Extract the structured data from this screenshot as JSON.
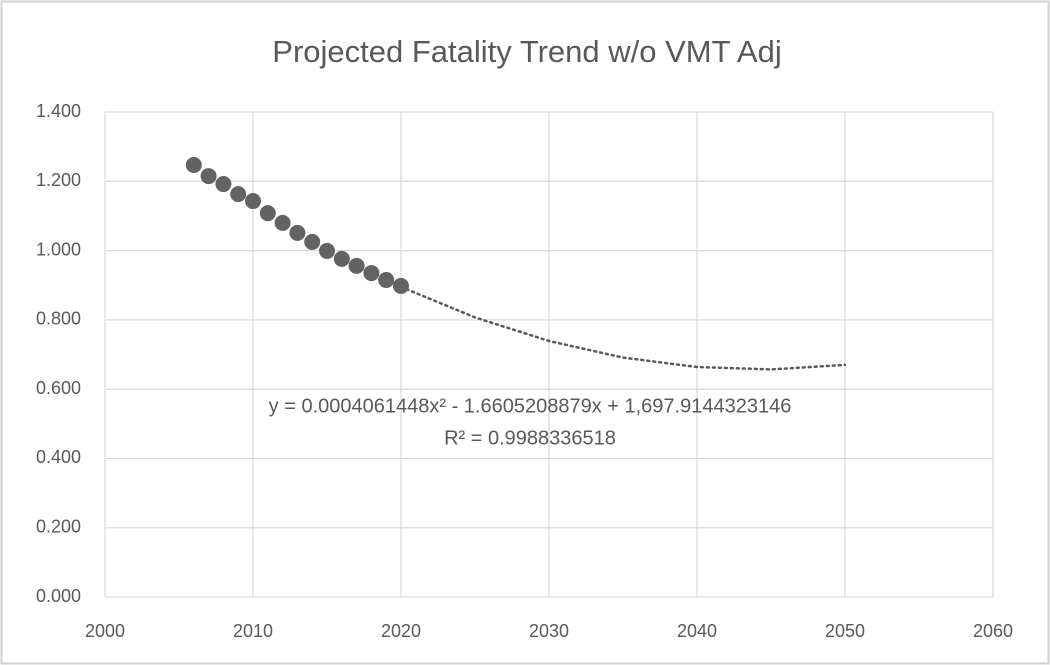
{
  "chart_data": {
    "type": "scatter",
    "title": "Projected Fatality Trend w/o VMT Adj",
    "x": [
      2006,
      2007,
      2008,
      2009,
      2010,
      2011,
      2012,
      2013,
      2014,
      2015,
      2016,
      2017,
      2018,
      2019,
      2020
    ],
    "values": [
      1.247,
      1.215,
      1.192,
      1.163,
      1.143,
      1.108,
      1.08,
      1.051,
      1.025,
      0.999,
      0.976,
      0.956,
      0.935,
      0.915,
      0.898
    ],
    "color": "#636363",
    "trendline": {
      "x": [
        2020,
        2025,
        2030,
        2035,
        2040,
        2045,
        2050
      ],
      "values": [
        0.895,
        0.807,
        0.739,
        0.691,
        0.664,
        0.657,
        0.67
      ],
      "color": "#595959"
    },
    "annotations": [
      "y = 0.0004061448x² - 1.6605208879x + 1,697.9144323146",
      "R² = 0.9988336518"
    ],
    "xlim": [
      2000,
      2060
    ],
    "xticks": [
      2000,
      2010,
      2020,
      2030,
      2040,
      2050,
      2060
    ],
    "ylim": [
      0,
      1.4
    ],
    "yticks": [
      {
        "value": 0,
        "label": "0.000"
      },
      {
        "value": 0.2,
        "label": "0.200"
      },
      {
        "value": 0.4,
        "label": "0.400"
      },
      {
        "value": 0.6,
        "label": "0.600"
      },
      {
        "value": 0.8,
        "label": "0.800"
      },
      {
        "value": 1.0,
        "label": "1.000"
      },
      {
        "value": 1.2,
        "label": "1.200"
      },
      {
        "value": 1.4,
        "label": "1.400"
      }
    ],
    "grid": true
  }
}
